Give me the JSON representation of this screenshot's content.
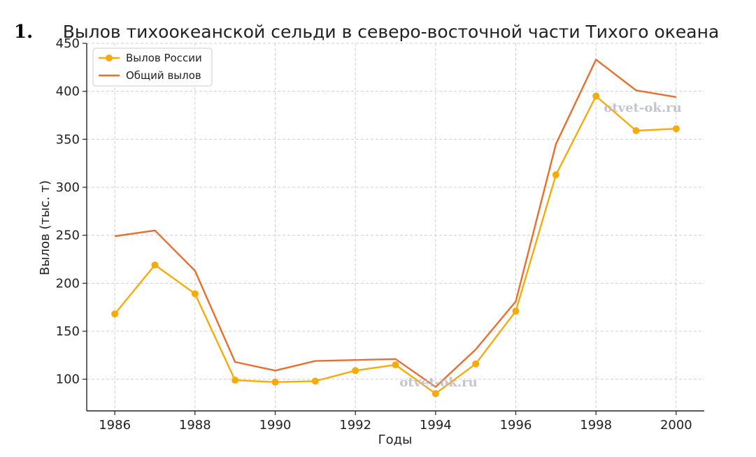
{
  "question_number": "1.",
  "watermarks": [
    "otvet-ok.ru",
    "otvet-ok.ru"
  ],
  "chart_data": {
    "type": "line",
    "title": "Вылов тихоокеанской сельди в северо-восточной части Тихого океана",
    "xlabel": "Годы",
    "ylabel": "Вылов (тыс. т)",
    "x": [
      1986,
      1987,
      1988,
      1989,
      1990,
      1991,
      1992,
      1993,
      1994,
      1995,
      1996,
      1997,
      1998,
      1999,
      2000
    ],
    "xticks": [
      "1986",
      "1988",
      "1990",
      "1992",
      "1994",
      "1996",
      "1998",
      "2000"
    ],
    "yticks": [
      "100",
      "150",
      "200",
      "250",
      "300",
      "350",
      "400",
      "450"
    ],
    "xlim": [
      1985.3,
      2000.7
    ],
    "ylim": [
      67,
      450
    ],
    "grid": true,
    "legend_position": "top-left",
    "series": [
      {
        "name": "Вылов России",
        "color": "#f5ab0b",
        "marker": "circle",
        "values": [
          168,
          219,
          189,
          99,
          97,
          98,
          109,
          115,
          85,
          116,
          171,
          313,
          395,
          359,
          361
        ]
      },
      {
        "name": "Общий вылов",
        "color": "#e86f2e",
        "marker": "none",
        "values": [
          249,
          255,
          213,
          118,
          109,
          119,
          120,
          121,
          92,
          131,
          181,
          345,
          433,
          401,
          394
        ]
      }
    ]
  }
}
